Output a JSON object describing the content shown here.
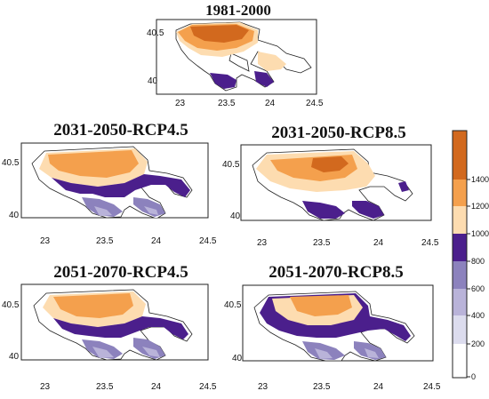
{
  "panels": [
    {
      "id": "p1",
      "title": "1981-2000"
    },
    {
      "id": "p2",
      "title": "2031-2050-RCP4.5"
    },
    {
      "id": "p3",
      "title": "2031-2050-RCP8.5"
    },
    {
      "id": "p4",
      "title": "2051-2070-RCP4.5"
    },
    {
      "id": "p5",
      "title": "2051-2070-RCP8.5"
    }
  ],
  "x_ticks": [
    "23",
    "23.5",
    "24",
    "24.5"
  ],
  "y_ticks": [
    "40.5",
    "40"
  ],
  "legend": {
    "labels": [
      "1400",
      "1200",
      "1000",
      "800",
      "600",
      "400",
      "200",
      "0"
    ],
    "colors": [
      "#ffffff",
      "#dcdcee",
      "#b9b3d9",
      "#8c82bd",
      "#4b1f8c",
      "#fddcb0",
      "#f4a04d",
      "#d2691e"
    ]
  }
}
